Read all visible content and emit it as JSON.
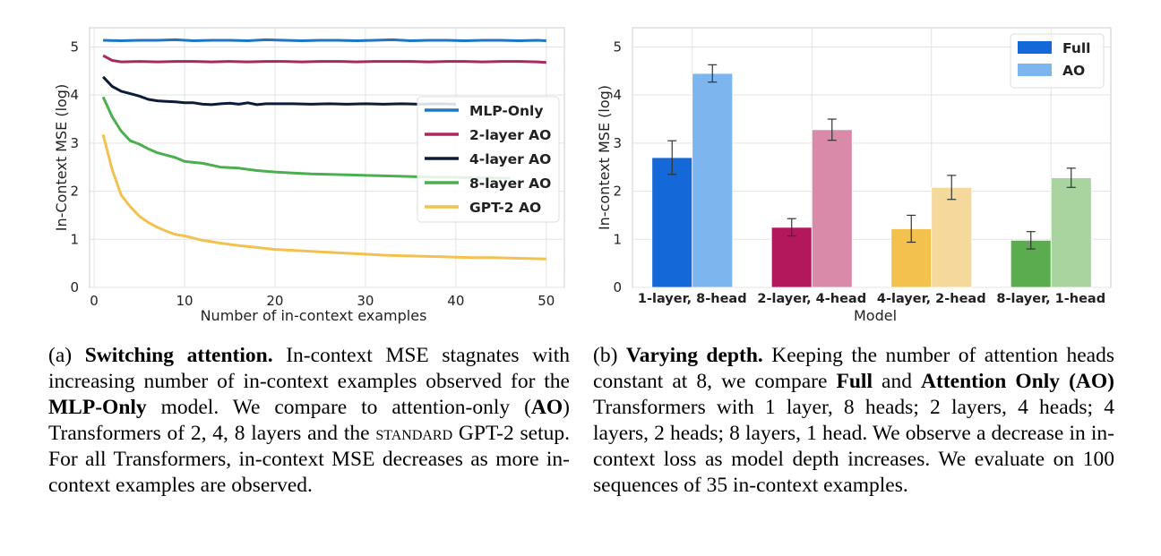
{
  "chart_data": [
    {
      "type": "line",
      "xlabel": "Number of in-context examples",
      "ylabel": "In-Context MSE (log)",
      "xlim": [
        -0.5,
        52
      ],
      "ylim": [
        0,
        5.4
      ],
      "xticks": [
        0,
        10,
        20,
        30,
        40,
        50
      ],
      "yticks": [
        0,
        1,
        2,
        3,
        4,
        5
      ],
      "grid": true,
      "legend_position": "center-right",
      "series": [
        {
          "name": "MLP-Only",
          "color": "#1f77c4",
          "x": [
            1,
            3,
            5,
            7,
            9,
            11,
            13,
            15,
            17,
            19,
            21,
            23,
            25,
            27,
            29,
            31,
            33,
            35,
            37,
            39,
            41,
            43,
            45,
            47,
            49,
            50
          ],
          "y": [
            5.14,
            5.13,
            5.14,
            5.14,
            5.15,
            5.13,
            5.14,
            5.14,
            5.13,
            5.15,
            5.14,
            5.13,
            5.14,
            5.14,
            5.13,
            5.14,
            5.15,
            5.13,
            5.14,
            5.14,
            5.13,
            5.14,
            5.14,
            5.13,
            5.14,
            5.13
          ]
        },
        {
          "name": "2-layer AO",
          "color": "#a8295f",
          "x": [
            1,
            2,
            3,
            5,
            7,
            9,
            11,
            13,
            15,
            17,
            19,
            21,
            23,
            25,
            27,
            29,
            31,
            33,
            35,
            37,
            39,
            41,
            43,
            45,
            47,
            49,
            50
          ],
          "y": [
            4.82,
            4.72,
            4.69,
            4.7,
            4.69,
            4.7,
            4.7,
            4.69,
            4.7,
            4.69,
            4.7,
            4.7,
            4.69,
            4.7,
            4.7,
            4.69,
            4.7,
            4.7,
            4.7,
            4.69,
            4.7,
            4.7,
            4.69,
            4.7,
            4.7,
            4.69,
            4.68
          ]
        },
        {
          "name": "4-layer AO",
          "color": "#0d1b36",
          "x": [
            1,
            2,
            3,
            4,
            5,
            6,
            7,
            8,
            9,
            10,
            11,
            12,
            13,
            14,
            15,
            16,
            17,
            18,
            19,
            20,
            22,
            24,
            26,
            28,
            30,
            32,
            34,
            36,
            38,
            40
          ],
          "y": [
            4.38,
            4.18,
            4.08,
            4.03,
            3.98,
            3.91,
            3.88,
            3.87,
            3.86,
            3.84,
            3.84,
            3.81,
            3.8,
            3.82,
            3.83,
            3.81,
            3.84,
            3.8,
            3.82,
            3.82,
            3.82,
            3.81,
            3.82,
            3.81,
            3.82,
            3.81,
            3.82,
            3.81,
            3.82,
            3.81
          ]
        },
        {
          "name": "8-layer AO",
          "color": "#4caf4f",
          "x": [
            1,
            2,
            3,
            4,
            5,
            6,
            7,
            8,
            9,
            10,
            11,
            12,
            14,
            16,
            18,
            20,
            22,
            24,
            26,
            28,
            30,
            32,
            34,
            36,
            38,
            40,
            42,
            44,
            46
          ],
          "y": [
            3.96,
            3.55,
            3.25,
            3.05,
            2.98,
            2.88,
            2.8,
            2.75,
            2.7,
            2.62,
            2.6,
            2.58,
            2.5,
            2.48,
            2.43,
            2.4,
            2.38,
            2.36,
            2.35,
            2.34,
            2.33,
            2.32,
            2.31,
            2.3,
            2.29,
            2.29,
            2.28,
            2.28,
            2.27
          ]
        },
        {
          "name": "GPT-2 AO",
          "color": "#f2c14e",
          "x": [
            1,
            2,
            3,
            4,
            5,
            6,
            7,
            8,
            9,
            10,
            12,
            14,
            16,
            18,
            20,
            22,
            24,
            26,
            28,
            30,
            32,
            34,
            36,
            38,
            40,
            42,
            44,
            46,
            48,
            50
          ],
          "y": [
            3.18,
            2.45,
            1.92,
            1.68,
            1.48,
            1.35,
            1.25,
            1.17,
            1.1,
            1.07,
            0.98,
            0.92,
            0.87,
            0.83,
            0.79,
            0.77,
            0.75,
            0.73,
            0.71,
            0.69,
            0.67,
            0.66,
            0.65,
            0.64,
            0.63,
            0.62,
            0.62,
            0.61,
            0.6,
            0.59
          ]
        }
      ]
    },
    {
      "type": "bar",
      "xlabel": "Model",
      "ylabel": "In-context MSE (log)",
      "ylim": [
        0,
        5.4
      ],
      "yticks": [
        0,
        1,
        2,
        3,
        4,
        5
      ],
      "grid": true,
      "legend_position": "top-right",
      "legend": [
        {
          "name": "Full",
          "color": "#1468d8"
        },
        {
          "name": "AO",
          "color": "#7db5ee"
        }
      ],
      "categories": [
        "1-layer, 8-head",
        "2-layer, 4-head",
        "4-layer, 2-head",
        "8-layer, 1-head"
      ],
      "full_colors": [
        "#1468d8",
        "#b3185c",
        "#f2c14e",
        "#5aac4f"
      ],
      "ao_colors": [
        "#7db5ee",
        "#d98aa8",
        "#f5d99c",
        "#a9d49f"
      ],
      "series": [
        {
          "name": "Full",
          "values": [
            2.7,
            1.25,
            1.22,
            0.98
          ],
          "errors": [
            0.35,
            0.18,
            0.28,
            0.18
          ]
        },
        {
          "name": "AO",
          "values": [
            4.45,
            3.28,
            2.08,
            2.28
          ],
          "errors": [
            0.18,
            0.22,
            0.25,
            0.2
          ]
        }
      ]
    }
  ],
  "captions": {
    "a": {
      "label": "(a) ",
      "title": "Switching attention.",
      "t1": " In-context MSE stagnates with increasing number of in-context examples observed for the ",
      "b1": "MLP-Only",
      "t2": " model. We compare to attention-only (",
      "b2": "AO",
      "t3": ") Transformers of 2, 4, 8 layers and the ",
      "sc": "standard",
      "t4": " GPT-2 setup. For all Transformers, in-context MSE decreases as more in-context examples are observed."
    },
    "b": {
      "label": "(b) ",
      "title": "Varying depth.",
      "t1": " Keeping the number of attention heads constant at 8, we compare ",
      "b1": "Full",
      "t2": " and ",
      "b2": "Attention Only (AO)",
      "t3": " Transformers with 1 layer, 8 heads; 2 layers, 4 heads; 4 layers, 2 heads; 8 layers, 1 head. We observe a decrease in in-context loss as model depth increases. We evaluate on 100 sequences of 35 in-context examples."
    }
  }
}
